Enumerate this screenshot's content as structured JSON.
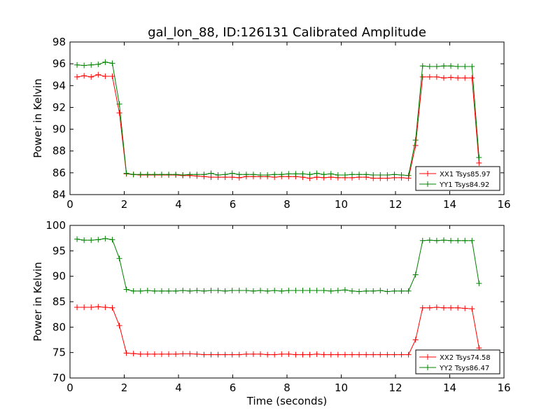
{
  "chart_data": {
    "title": "gal_lon_88, ID:126131 Calibrated Amplitude",
    "xlabel": "Time (seconds)",
    "panels": [
      {
        "type": "line",
        "ylabel": "Power in Kelvin",
        "xlim": [
          0,
          16
        ],
        "ylim": [
          84,
          98
        ],
        "xticks": [
          0,
          2,
          4,
          6,
          8,
          10,
          12,
          14,
          16
        ],
        "yticks": [
          84,
          86,
          88,
          90,
          92,
          94,
          96,
          98
        ],
        "legend_position": "lower-right",
        "x": [
          0.26,
          0.52,
          0.78,
          1.04,
          1.3,
          1.56,
          1.82,
          2.08,
          2.34,
          2.6,
          2.86,
          3.12,
          3.38,
          3.64,
          3.9,
          4.16,
          4.42,
          4.68,
          4.94,
          5.2,
          5.46,
          5.72,
          5.98,
          6.24,
          6.5,
          6.76,
          7.02,
          7.28,
          7.54,
          7.8,
          8.06,
          8.32,
          8.58,
          8.84,
          9.1,
          9.36,
          9.62,
          9.88,
          10.14,
          10.4,
          10.66,
          10.92,
          11.18,
          11.44,
          11.7,
          11.96,
          12.22,
          12.48,
          12.74,
          13.0,
          13.26,
          13.52,
          13.78,
          14.04,
          14.3,
          14.56,
          14.82,
          15.08
        ],
        "series": [
          {
            "name": "XX1 Tsys85.97",
            "color": "#ff0000",
            "values": [
              94.8,
              94.9,
              94.8,
              95.0,
              94.85,
              94.85,
              91.5,
              85.9,
              85.85,
              85.8,
              85.8,
              85.8,
              85.8,
              85.8,
              85.8,
              85.75,
              85.75,
              85.7,
              85.65,
              85.6,
              85.6,
              85.6,
              85.6,
              85.55,
              85.65,
              85.65,
              85.65,
              85.65,
              85.6,
              85.65,
              85.65,
              85.65,
              85.6,
              85.5,
              85.6,
              85.55,
              85.6,
              85.55,
              85.55,
              85.55,
              85.6,
              85.6,
              85.5,
              85.5,
              85.5,
              85.55,
              85.55,
              85.5,
              88.5,
              94.8,
              94.8,
              94.8,
              94.7,
              94.75,
              94.7,
              94.7,
              94.7,
              86.9
            ]
          },
          {
            "name": "YY1 Tsys84.92",
            "color": "#008000",
            "values": [
              95.9,
              95.85,
              95.9,
              95.95,
              96.15,
              96.05,
              92.3,
              85.95,
              85.85,
              85.85,
              85.85,
              85.85,
              85.85,
              85.85,
              85.85,
              85.8,
              85.85,
              85.85,
              85.85,
              85.95,
              85.8,
              85.85,
              85.95,
              85.85,
              85.85,
              85.85,
              85.8,
              85.8,
              85.85,
              85.85,
              85.9,
              85.9,
              85.9,
              85.85,
              85.95,
              85.85,
              85.9,
              85.8,
              85.8,
              85.85,
              85.85,
              85.85,
              85.8,
              85.8,
              85.8,
              85.85,
              85.8,
              85.75,
              89.0,
              95.8,
              95.75,
              95.75,
              95.8,
              95.8,
              95.75,
              95.75,
              95.75,
              87.4
            ]
          }
        ]
      },
      {
        "type": "line",
        "ylabel": "Power in Kelvin",
        "xlim": [
          0,
          16
        ],
        "ylim": [
          70,
          100
        ],
        "xticks": [
          0,
          2,
          4,
          6,
          8,
          10,
          12,
          14,
          16
        ],
        "yticks": [
          70,
          75,
          80,
          85,
          90,
          95,
          100
        ],
        "legend_position": "lower-right",
        "x": [
          0.26,
          0.52,
          0.78,
          1.04,
          1.3,
          1.56,
          1.82,
          2.08,
          2.34,
          2.6,
          2.86,
          3.12,
          3.38,
          3.64,
          3.9,
          4.16,
          4.42,
          4.68,
          4.94,
          5.2,
          5.46,
          5.72,
          5.98,
          6.24,
          6.5,
          6.76,
          7.02,
          7.28,
          7.54,
          7.8,
          8.06,
          8.32,
          8.58,
          8.84,
          9.1,
          9.36,
          9.62,
          9.88,
          10.14,
          10.4,
          10.66,
          10.92,
          11.18,
          11.44,
          11.7,
          11.96,
          12.22,
          12.48,
          12.74,
          13.0,
          13.26,
          13.52,
          13.78,
          14.04,
          14.3,
          14.56,
          14.82,
          15.08
        ],
        "series": [
          {
            "name": "XX2 Tsys74.58",
            "color": "#ff0000",
            "values": [
              83.9,
              83.9,
              83.9,
              84.0,
              83.9,
              83.8,
              80.3,
              74.9,
              74.8,
              74.7,
              74.7,
              74.7,
              74.7,
              74.7,
              74.7,
              74.75,
              74.75,
              74.7,
              74.6,
              74.6,
              74.6,
              74.6,
              74.6,
              74.6,
              74.7,
              74.7,
              74.7,
              74.6,
              74.6,
              74.7,
              74.7,
              74.6,
              74.6,
              74.6,
              74.7,
              74.6,
              74.6,
              74.6,
              74.6,
              74.6,
              74.6,
              74.6,
              74.6,
              74.6,
              74.6,
              74.6,
              74.6,
              74.6,
              77.5,
              83.8,
              83.8,
              83.9,
              83.8,
              83.8,
              83.8,
              83.7,
              83.6,
              75.9
            ]
          },
          {
            "name": "YY2 Tsys86.47",
            "color": "#008000",
            "values": [
              97.3,
              97.1,
              97.1,
              97.2,
              97.4,
              97.2,
              93.5,
              87.4,
              87.1,
              87.1,
              87.2,
              87.1,
              87.1,
              87.1,
              87.1,
              87.2,
              87.1,
              87.2,
              87.1,
              87.2,
              87.2,
              87.1,
              87.2,
              87.2,
              87.2,
              87.1,
              87.2,
              87.1,
              87.2,
              87.1,
              87.2,
              87.2,
              87.2,
              87.2,
              87.2,
              87.2,
              87.1,
              87.2,
              87.3,
              87.1,
              87.0,
              87.1,
              87.1,
              87.2,
              87.0,
              87.1,
              87.1,
              87.1,
              90.3,
              97.0,
              97.1,
              97.0,
              97.1,
              97.0,
              97.0,
              97.0,
              97.0,
              88.6
            ]
          }
        ]
      }
    ]
  }
}
